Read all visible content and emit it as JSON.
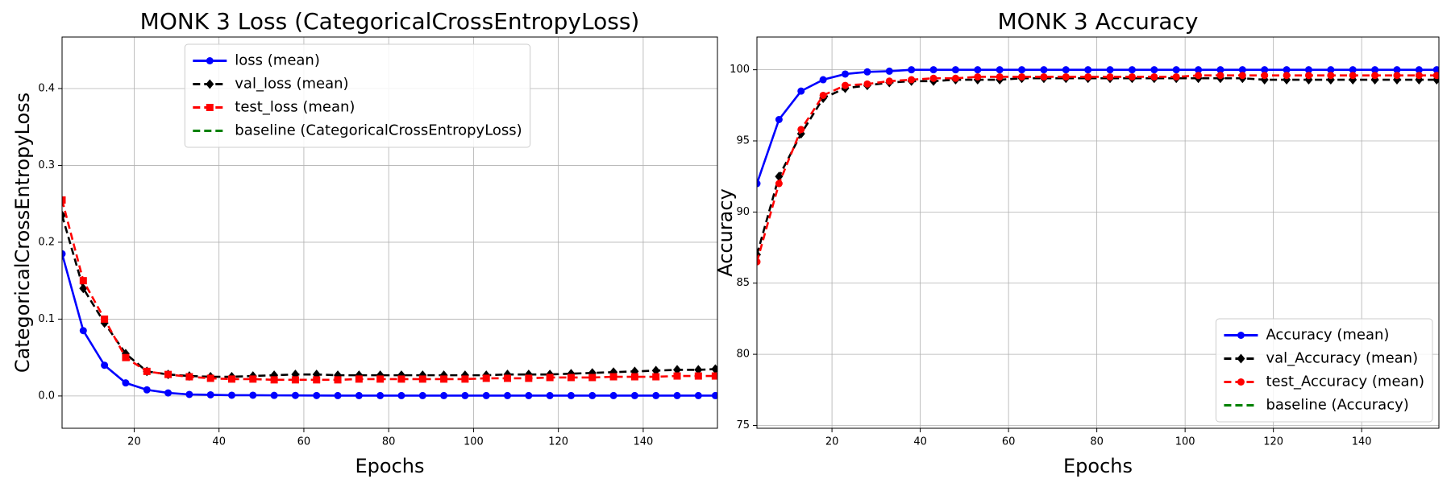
{
  "chart_data": [
    {
      "type": "line",
      "title": "MONK 3 Loss (CategoricalCrossEntropyLoss)",
      "xlabel": "Epochs",
      "ylabel": "CategoricalCrossEntropyLoss",
      "x": [
        3,
        8,
        13,
        18,
        23,
        28,
        33,
        38,
        43,
        48,
        53,
        58,
        63,
        68,
        73,
        78,
        83,
        88,
        93,
        98,
        103,
        108,
        113,
        118,
        123,
        128,
        133,
        138,
        143,
        148,
        153,
        157
      ],
      "xlim": [
        3,
        157.5
      ],
      "xticks": [
        20,
        40,
        60,
        80,
        100,
        120,
        140
      ],
      "ylim": [
        -0.042,
        0.467
      ],
      "yticks": [
        {
          "value": 0,
          "label": "0.0"
        },
        0.1,
        0.2,
        0.3,
        0.4
      ],
      "grid": true,
      "legend": "upper center",
      "series": [
        {
          "name": "loss (mean)",
          "color": "#0000ff",
          "linestyle": "solid",
          "marker": "circle",
          "values": [
            0.185,
            0.085,
            0.04,
            0.017,
            0.008,
            0.004,
            0.002,
            0.0015,
            0.001,
            0.001,
            0.0008,
            0.0007,
            0.0006,
            0.0005,
            0.0005,
            0.0005,
            0.0005,
            0.0005,
            0.0005,
            0.0005,
            0.0005,
            0.0005,
            0.0005,
            0.0005,
            0.0005,
            0.0005,
            0.0005,
            0.0005,
            0.0005,
            0.0005,
            0.0005,
            0.0005
          ]
        },
        {
          "name": "val_loss (mean)",
          "color": "#000000",
          "linestyle": "dashed",
          "marker": "diamond",
          "values": [
            0.235,
            0.14,
            0.095,
            0.055,
            0.032,
            0.028,
            0.026,
            0.025,
            0.025,
            0.026,
            0.027,
            0.028,
            0.028,
            0.027,
            0.027,
            0.027,
            0.027,
            0.027,
            0.027,
            0.027,
            0.027,
            0.028,
            0.028,
            0.028,
            0.029,
            0.03,
            0.031,
            0.032,
            0.033,
            0.034,
            0.034,
            0.035
          ]
        },
        {
          "name": "test_loss (mean)",
          "color": "#ff0000",
          "linestyle": "dashed",
          "marker": "square",
          "values": [
            0.255,
            0.15,
            0.1,
            0.05,
            0.032,
            0.028,
            0.025,
            0.023,
            0.022,
            0.022,
            0.021,
            0.021,
            0.021,
            0.021,
            0.022,
            0.022,
            0.022,
            0.022,
            0.022,
            0.022,
            0.023,
            0.023,
            0.023,
            0.024,
            0.024,
            0.024,
            0.025,
            0.025,
            0.025,
            0.026,
            0.026,
            0.026
          ]
        },
        {
          "name": "baseline (CategoricalCrossEntropyLoss)",
          "color": "#008000",
          "linestyle": "dashed",
          "marker": "none",
          "values": [
            null,
            null,
            null,
            null,
            null,
            null,
            null,
            null,
            null,
            null,
            null,
            null,
            null,
            null,
            null,
            null,
            null,
            null,
            null,
            null,
            null,
            null,
            null,
            null,
            null,
            null,
            null,
            null,
            null,
            null,
            null,
            null
          ]
        }
      ]
    },
    {
      "type": "line",
      "title": "MONK 3 Accuracy",
      "xlabel": "Epochs",
      "ylabel": "Accuracy",
      "x": [
        3,
        8,
        13,
        18,
        23,
        28,
        33,
        38,
        43,
        48,
        53,
        58,
        63,
        68,
        73,
        78,
        83,
        88,
        93,
        98,
        103,
        108,
        113,
        118,
        123,
        128,
        133,
        138,
        143,
        148,
        153,
        157
      ],
      "xlim": [
        3,
        157.5
      ],
      "xticks": [
        20,
        40,
        60,
        80,
        100,
        120,
        140
      ],
      "ylim": [
        74.8,
        102.3
      ],
      "yticks": [
        75,
        80,
        85,
        90,
        95,
        100
      ],
      "grid": true,
      "legend": "lower right",
      "series": [
        {
          "name": "Accuracy (mean)",
          "color": "#0000ff",
          "linestyle": "solid",
          "marker": "circle",
          "values": [
            92,
            96.5,
            98.5,
            99.3,
            99.7,
            99.85,
            99.9,
            100,
            100,
            100,
            100,
            100,
            100,
            100,
            100,
            100,
            100,
            100,
            100,
            100,
            100,
            100,
            100,
            100,
            100,
            100,
            100,
            100,
            100,
            100,
            100,
            100
          ]
        },
        {
          "name": "val_Accuracy (mean)",
          "color": "#000000",
          "linestyle": "dashed",
          "marker": "diamond",
          "values": [
            87,
            92.5,
            95.5,
            98,
            98.7,
            98.9,
            99.1,
            99.2,
            99.2,
            99.3,
            99.3,
            99.3,
            99.4,
            99.4,
            99.4,
            99.4,
            99.4,
            99.4,
            99.4,
            99.4,
            99.4,
            99.4,
            99.4,
            99.3,
            99.3,
            99.3,
            99.3,
            99.3,
            99.3,
            99.3,
            99.3,
            99.3
          ]
        },
        {
          "name": "test_Accuracy (mean)",
          "color": "#ff0000",
          "linestyle": "dashed",
          "marker": "circle",
          "values": [
            86.5,
            92,
            95.8,
            98.2,
            98.9,
            99.0,
            99.2,
            99.3,
            99.4,
            99.4,
            99.5,
            99.5,
            99.5,
            99.5,
            99.5,
            99.5,
            99.5,
            99.5,
            99.5,
            99.5,
            99.6,
            99.6,
            99.6,
            99.6,
            99.6,
            99.6,
            99.6,
            99.6,
            99.6,
            99.6,
            99.6,
            99.6
          ]
        },
        {
          "name": "baseline (Accuracy)",
          "color": "#008000",
          "linestyle": "dashed",
          "marker": "none",
          "values": [
            null,
            null,
            null,
            null,
            null,
            null,
            null,
            null,
            null,
            null,
            null,
            null,
            null,
            null,
            null,
            null,
            null,
            null,
            null,
            null,
            null,
            null,
            null,
            null,
            null,
            null,
            null,
            null,
            null,
            null,
            null,
            null
          ]
        }
      ]
    }
  ]
}
